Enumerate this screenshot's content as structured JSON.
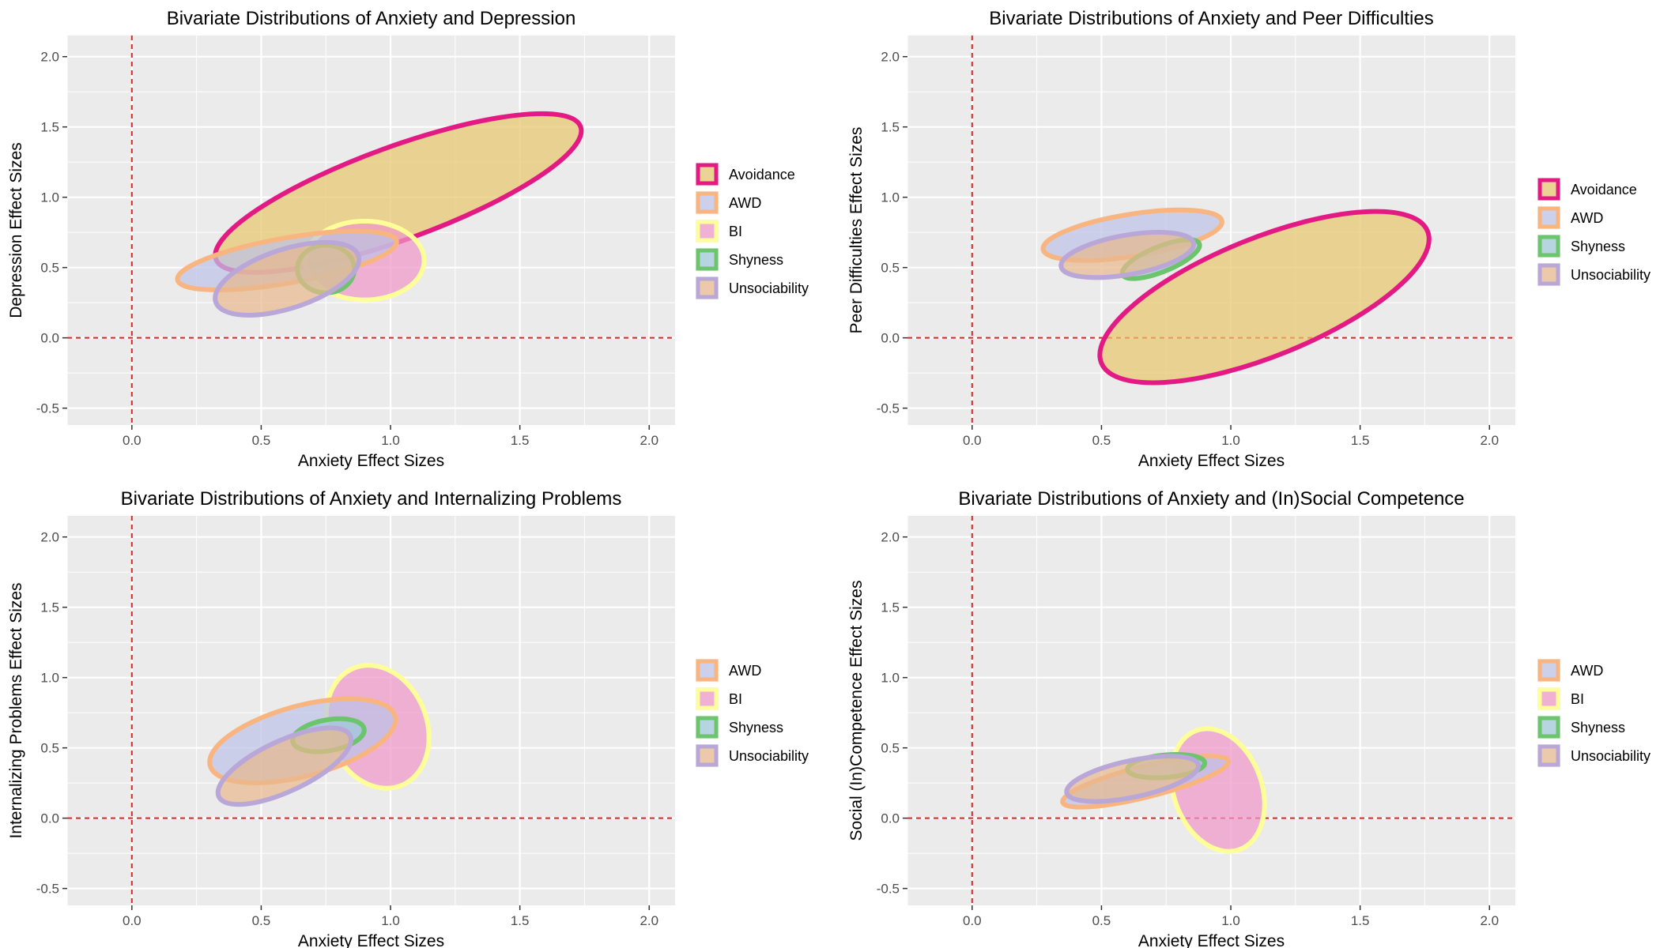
{
  "chart_data": [
    {
      "type": "ellipse-region",
      "title": "Bivariate Distributions of Anxiety and Depression",
      "xlabel": "Anxiety Effect Sizes",
      "ylabel": "Depression Effect Sizes",
      "xlim": [
        -0.25,
        2.1
      ],
      "ylim": [
        -0.62,
        2.15
      ],
      "xticks": [
        "0.0",
        "0.5",
        "1.0",
        "1.5",
        "2.0"
      ],
      "yticks": [
        "-0.5",
        "0.0",
        "0.5",
        "1.0",
        "1.5",
        "2.0"
      ],
      "ref_x": 0,
      "ref_y": 0,
      "legend": [
        "Avoidance",
        "AWD",
        "BI",
        "Shyness",
        "Unsociability"
      ],
      "series": [
        {
          "name": "Avoidance",
          "cx": 1.03,
          "cy": 1.03,
          "rx": 0.75,
          "ry": 0.33,
          "angle": 20
        },
        {
          "name": "BI",
          "cx": 0.9,
          "cy": 0.55,
          "rx": 0.23,
          "ry": 0.28,
          "angle": 0
        },
        {
          "name": "AWD",
          "cx": 0.6,
          "cy": 0.55,
          "rx": 0.43,
          "ry": 0.16,
          "angle": 10
        },
        {
          "name": "Shyness",
          "cx": 0.75,
          "cy": 0.49,
          "rx": 0.11,
          "ry": 0.17,
          "angle": 0
        },
        {
          "name": "Unsociability",
          "cx": 0.6,
          "cy": 0.42,
          "rx": 0.29,
          "ry": 0.21,
          "angle": 18
        }
      ]
    },
    {
      "type": "ellipse-region",
      "title": "Bivariate Distributions of Anxiety and Peer Difficulties",
      "xlabel": "Anxiety Effect Sizes",
      "ylabel": "Peer Difficulties Effect Sizes",
      "xlim": [
        -0.25,
        2.1
      ],
      "ylim": [
        -0.62,
        2.15
      ],
      "xticks": [
        "0.0",
        "0.5",
        "1.0",
        "1.5",
        "2.0"
      ],
      "yticks": [
        "-0.5",
        "0.0",
        "0.5",
        "1.0",
        "1.5",
        "2.0"
      ],
      "ref_x": 0,
      "ref_y": 0,
      "legend": [
        "Avoidance",
        "AWD",
        "Shyness",
        "Unsociability"
      ],
      "series": [
        {
          "name": "Avoidance",
          "cx": 1.13,
          "cy": 0.29,
          "rx": 0.68,
          "ry": 0.42,
          "angle": 22
        },
        {
          "name": "AWD",
          "cx": 0.62,
          "cy": 0.73,
          "rx": 0.35,
          "ry": 0.15,
          "angle": 9
        },
        {
          "name": "Shyness",
          "cx": 0.73,
          "cy": 0.56,
          "rx": 0.16,
          "ry": 0.09,
          "angle": 22
        },
        {
          "name": "Unsociability",
          "cx": 0.6,
          "cy": 0.59,
          "rx": 0.26,
          "ry": 0.14,
          "angle": 10
        }
      ]
    },
    {
      "type": "ellipse-region",
      "title": "Bivariate Distributions of Anxiety and Internalizing Problems",
      "xlabel": "Anxiety Effect Sizes",
      "ylabel": "Internalizing Problems Effect Sizes",
      "xlim": [
        -0.25,
        2.1
      ],
      "ylim": [
        -0.62,
        2.15
      ],
      "xticks": [
        "0.0",
        "0.5",
        "1.0",
        "1.5",
        "2.0"
      ],
      "yticks": [
        "-0.5",
        "0.0",
        "0.5",
        "1.0",
        "1.5",
        "2.0"
      ],
      "ref_x": 0,
      "ref_y": 0,
      "legend": [
        "AWD",
        "BI",
        "Shyness",
        "Unsociability"
      ],
      "series": [
        {
          "name": "BI",
          "cx": 0.95,
          "cy": 0.65,
          "rx": 0.19,
          "ry": 0.45,
          "angle": 22
        },
        {
          "name": "AWD",
          "cx": 0.66,
          "cy": 0.55,
          "rx": 0.37,
          "ry": 0.25,
          "angle": 15
        },
        {
          "name": "Shyness",
          "cx": 0.76,
          "cy": 0.59,
          "rx": 0.14,
          "ry": 0.11,
          "angle": 10
        },
        {
          "name": "Unsociability",
          "cx": 0.59,
          "cy": 0.37,
          "rx": 0.28,
          "ry": 0.18,
          "angle": 25
        }
      ]
    },
    {
      "type": "ellipse-region",
      "title": "Bivariate Distributions of Anxiety and (In)Social Competence",
      "xlabel": "Anxiety Effect Sizes",
      "ylabel": "Social (In)Competence Effect Sizes",
      "xlim": [
        -0.25,
        2.1
      ],
      "ylim": [
        -0.62,
        2.15
      ],
      "xticks": [
        "0.0",
        "0.5",
        "1.0",
        "1.5",
        "2.0"
      ],
      "yticks": [
        "-0.5",
        "0.0",
        "0.5",
        "1.0",
        "1.5",
        "2.0"
      ],
      "ref_x": 0,
      "ref_y": 0,
      "legend": [
        "AWD",
        "BI",
        "Shyness",
        "Unsociability"
      ],
      "series": [
        {
          "name": "BI",
          "cx": 0.95,
          "cy": 0.2,
          "rx": 0.17,
          "ry": 0.45,
          "angle": 20
        },
        {
          "name": "AWD",
          "cx": 0.67,
          "cy": 0.26,
          "rx": 0.33,
          "ry": 0.11,
          "angle": 14
        },
        {
          "name": "Shyness",
          "cx": 0.75,
          "cy": 0.37,
          "rx": 0.15,
          "ry": 0.08,
          "angle": 5
        },
        {
          "name": "Unsociability",
          "cx": 0.62,
          "cy": 0.28,
          "rx": 0.26,
          "ry": 0.13,
          "angle": 12
        }
      ]
    }
  ],
  "styles": {
    "Avoidance": {
      "fill": "#e6c66e",
      "stroke": "#e41a84"
    },
    "AWD": {
      "fill": "#bdc2e6",
      "stroke": "#f9b580"
    },
    "BI": {
      "fill": "#ef97c9",
      "stroke": "#ffff9a"
    },
    "Shyness": {
      "fill": "#9ec9d8",
      "stroke": "#6cc46c"
    },
    "Unsociability": {
      "fill": "#e8b98e",
      "stroke": "#b9a7d7"
    }
  },
  "colors": {
    "panel_background": "#ebebeb",
    "grid": "#ffffff",
    "reference_line": "#d62728",
    "tick_text": "#4d4d4d"
  }
}
